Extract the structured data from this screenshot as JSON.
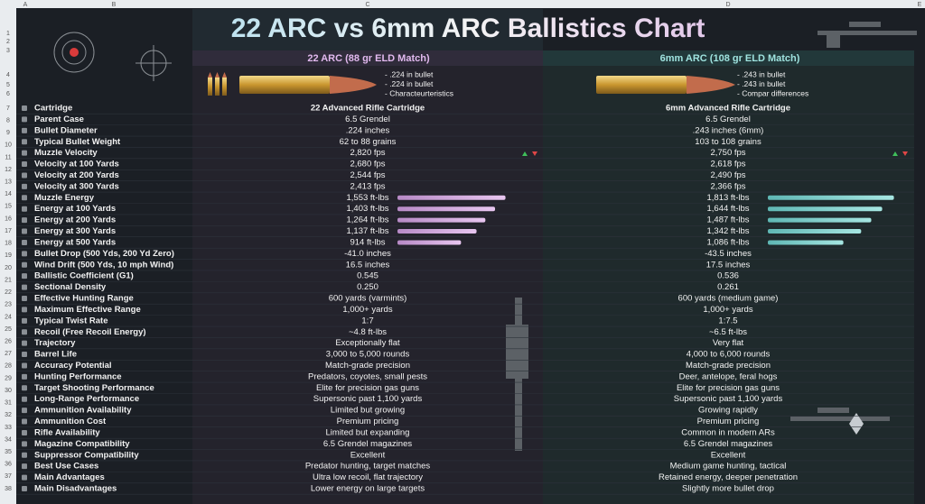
{
  "sheet": {
    "columns": [
      "A",
      "B",
      "C",
      "D",
      "E"
    ],
    "row_headers": [
      1,
      2,
      3,
      4,
      5,
      6,
      7,
      8,
      9,
      10,
      11,
      12,
      13,
      14,
      15,
      16,
      17,
      18,
      19,
      20,
      21,
      22,
      23,
      24,
      25,
      26,
      27,
      28,
      29,
      30,
      31,
      32,
      33,
      34,
      35,
      36,
      37,
      38
    ]
  },
  "title": "22 ARC vs 6mm ARC Ballistics Chart",
  "headers": [
    "22 ARC (88 gr ELD Match)",
    "6mm ARC (108 gr ELD Match)"
  ],
  "notes": [
    [
      "- .224 in bullet",
      "- .224 in bullet",
      "- Characteurteristics"
    ],
    [
      "- .243 in bullet",
      "- .243 in bullet",
      "- Compar differences"
    ]
  ],
  "table": {
    "rows": [
      [
        "Cartridge",
        "22 Advanced Rifle Cartridge",
        "6mm Advanced Rifle Cartridge"
      ],
      [
        "Parent Case",
        "6.5 Grendel",
        "6.5 Grendel"
      ],
      [
        "Bullet Diameter",
        ".224 inches",
        ".243 inches (6mm)"
      ],
      [
        "Typical Bullet Weight",
        "62 to 88 grains",
        "103 to 108 grains"
      ],
      [
        "Muzzle Velocity",
        "2,820 fps",
        "2,750 fps"
      ],
      [
        "Velocity at 100 Yards",
        "2,680 fps",
        "2,618 fps"
      ],
      [
        "Velocity at 200 Yards",
        "2,544 fps",
        "2,490 fps"
      ],
      [
        "Velocity at 300 Yards",
        "2,413 fps",
        "2,366 fps"
      ],
      [
        "Muzzle Energy",
        "1,553 ft-lbs",
        "1,813 ft-lbs"
      ],
      [
        "Energy at 100 Yards",
        "1,403 ft-lbs",
        "1,644 ft-lbs"
      ],
      [
        "Energy at 200 Yards",
        "1,264 ft-lbs",
        "1,487 ft-lbs"
      ],
      [
        "Energy at 300 Yards",
        "1,137 ft-lbs",
        "1,342 ft-lbs"
      ],
      [
        "Energy at 500 Yards",
        "914 ft-lbs",
        "1,086 ft-lbs"
      ],
      [
        "Bullet Drop (500 Yds, 200 Yd Zero)",
        "-41.0 inches",
        "-43.5 inches"
      ],
      [
        "Wind Drift (500 Yds, 10 mph Wind)",
        "16.5 inches",
        "17.5 inches"
      ],
      [
        "Ballistic Coefficient (G1)",
        "0.545",
        "0.536"
      ],
      [
        "Sectional Density",
        "0.250",
        "0.261"
      ],
      [
        "Effective Hunting Range",
        "600 yards (varmints)",
        "600 yards (medium game)"
      ],
      [
        "Maximum Effective Range",
        "1,000+ yards",
        "1,000+ yards"
      ],
      [
        "Typical Twist Rate",
        "1:7",
        "1:7.5"
      ],
      [
        "Recoil (Free Recoil Energy)",
        "~4.8 ft-lbs",
        "~6.5 ft-lbs"
      ],
      [
        "Trajectory",
        "Exceptionally flat",
        "Very flat"
      ],
      [
        "Barrel Life",
        "3,000 to 5,000 rounds",
        "4,000 to 6,000 rounds"
      ],
      [
        "Accuracy Potential",
        "Match-grade precision",
        "Match-grade precision"
      ],
      [
        "Hunting Performance",
        "Predators, coyotes, small pests",
        "Deer, antelope, feral hogs"
      ],
      [
        "Target Shooting Performance",
        "Elite for precision gas guns",
        "Elite for precision gas guns"
      ],
      [
        "Long-Range Performance",
        "Supersonic past 1,100 yards",
        "Supersonic past 1,100 yards"
      ],
      [
        "Ammunition Availability",
        "Limited but growing",
        "Growing rapidly"
      ],
      [
        "Ammunition Cost",
        "Premium pricing",
        "Premium pricing"
      ],
      [
        "Rifle Availability",
        "Limited but expanding",
        "Common in modern ARs"
      ],
      [
        "Magazine Compatibility",
        "6.5 Grendel magazines",
        "6.5 Grendel magazines"
      ],
      [
        "Suppressor Compatibility",
        "Excellent",
        "Excellent"
      ],
      [
        "Best Use Cases",
        "Predator hunting, target matches",
        "Medium game hunting, tactical"
      ],
      [
        "Main Advantages",
        "Ultra low recoil, flat trajectory",
        "Retained energy, deeper penetration"
      ],
      [
        "Main Disadvantages",
        "Lower energy on large targets",
        "Slightly more bullet drop"
      ]
    ]
  }
}
